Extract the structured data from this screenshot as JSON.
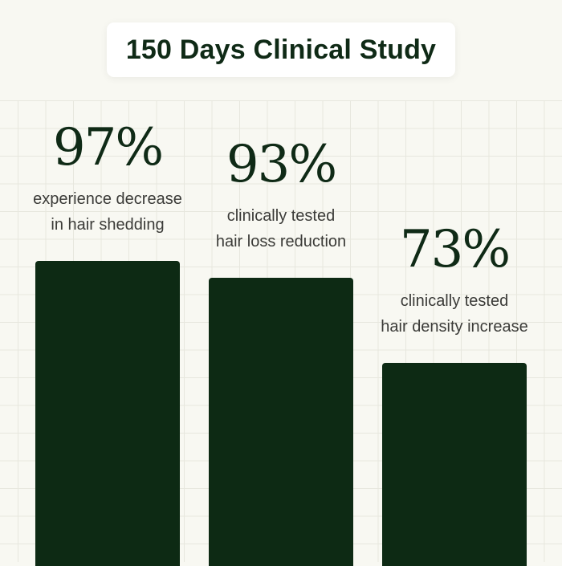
{
  "title": "150 Days Clinical Study",
  "colors": {
    "bar": "#0d2a14",
    "background": "#f8f8f2",
    "grid": "#e7e7de"
  },
  "chart_data": {
    "type": "bar",
    "title": "150 Days Clinical Study",
    "categories": [
      "experience decrease in hair shedding",
      "clinically tested hair loss reduction",
      "clinically tested hair density increase"
    ],
    "values": [
      97,
      93,
      73
    ],
    "labels": [
      "97%",
      "93%",
      "73%"
    ],
    "captions": [
      [
        "experience decrease",
        "in hair shedding"
      ],
      [
        "clinically tested",
        "hair loss reduction"
      ],
      [
        "clinically tested",
        "hair density increase"
      ]
    ],
    "grid": true
  }
}
